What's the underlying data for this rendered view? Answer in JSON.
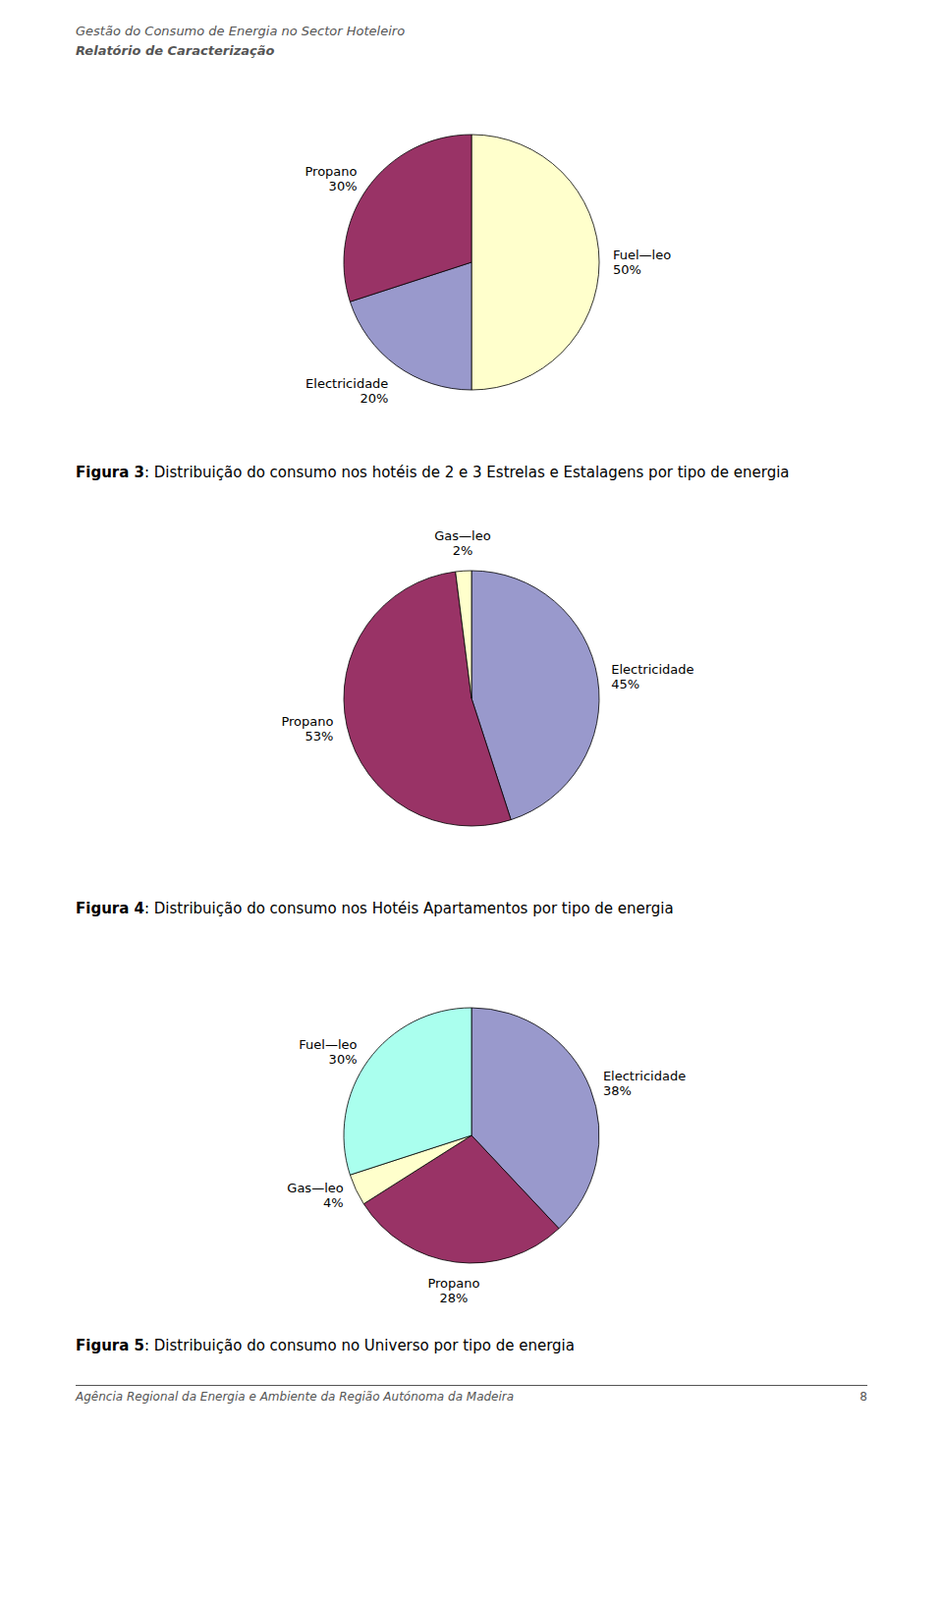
{
  "chart_data": [
    {
      "type": "pie",
      "title": "Figura 3: Distribuição do consumo nos hotéis de 2 e 3 Estrelas e Estalagens por tipo de energia",
      "categories": [
        "Fuel—leo",
        "Electricidade",
        "Propano"
      ],
      "values": [
        50,
        20,
        30
      ],
      "value_labels": [
        "50%",
        "20%",
        "30%"
      ],
      "colors": [
        "#FFFFCC",
        "#9999CC",
        "#993366"
      ],
      "data_labels": true,
      "annotations": [
        "Gestão do Consumo de Energia no Sector Hoteleiro",
        "Relatório de Caracterização"
      ]
    },
    {
      "type": "pie",
      "title": "Figura 4: Distribuição do consumo nos Hotéis Apartamentos por tipo de energia",
      "categories": [
        "Electricidade",
        "Propano",
        "Gas—leo"
      ],
      "values": [
        45,
        53,
        2
      ],
      "value_labels": [
        "45%",
        "53%",
        "2%"
      ],
      "colors": [
        "#9999CC",
        "#993366",
        "#FFFFCC"
      ],
      "data_labels": true
    },
    {
      "type": "pie",
      "title": "Figura 5: Distribuição do consumo no Universo por tipo de energia",
      "categories": [
        "Electricidade",
        "Propano",
        "Gas—leo",
        "Fuel—leo"
      ],
      "values": [
        38,
        28,
        4,
        30
      ],
      "value_labels": [
        "38%",
        "28%",
        "4%",
        "30%"
      ],
      "colors": [
        "#9999CC",
        "#993366",
        "#FFFFCC",
        "#AAFFEE"
      ],
      "data_labels": true,
      "annotations": [
        "Agência Regional da Energia e Ambiente da Região Autónoma da Madeira",
        "8"
      ]
    }
  ]
}
